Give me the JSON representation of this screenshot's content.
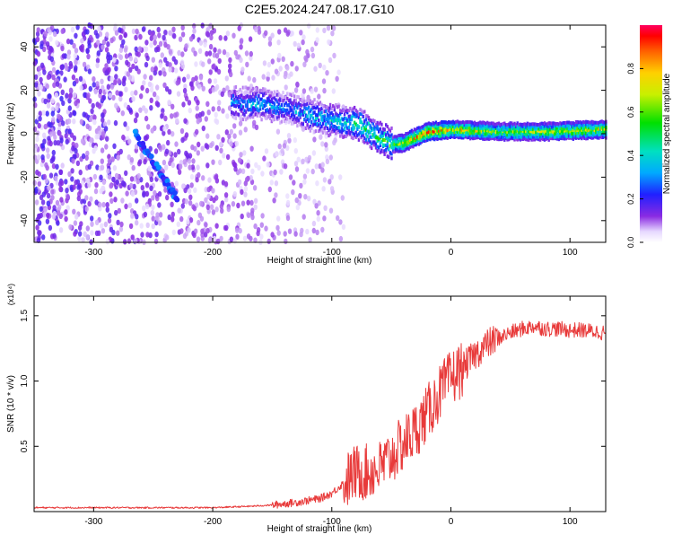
{
  "title": "C2E5.2024.247.08.17.G10",
  "chart_data": [
    {
      "type": "heatmap",
      "name": "spectrogram",
      "xlabel": "Height of straight line (km)",
      "ylabel": "Frequency (Hz)",
      "xlim": [
        -350,
        130
      ],
      "ylim": [
        -50,
        50
      ],
      "x_ticks": [
        -300,
        -200,
        -100,
        0,
        100
      ],
      "y_ticks": [
        -40,
        -20,
        0,
        20,
        40
      ],
      "colorbar": {
        "label": "Normalized spectral amplitude",
        "range": [
          0,
          1
        ],
        "ticks": [
          0.0,
          0.2,
          0.4,
          0.6,
          0.8
        ]
      },
      "ridge": {
        "x": [
          -180,
          -160,
          -140,
          -120,
          -100,
          -80,
          -60,
          -50,
          -40,
          -20,
          0,
          40,
          80,
          130
        ],
        "frequency": [
          14,
          14,
          12,
          9,
          6,
          5,
          -2,
          -5,
          -4,
          1,
          2,
          1,
          1,
          2
        ],
        "amplitude": [
          0.3,
          0.35,
          0.3,
          0.35,
          0.4,
          0.45,
          0.5,
          0.55,
          0.7,
          0.85,
          0.75,
          0.6,
          0.65,
          0.7
        ]
      },
      "diagonal_feature": {
        "x": [
          -265,
          -230
        ],
        "frequency": [
          0,
          -30
        ]
      }
    },
    {
      "type": "line",
      "name": "snr",
      "xlabel": "Height of straight line (km)",
      "ylabel": "SNR (10 * v/v)",
      "y_multiplier": "(x10⁴)",
      "xlim": [
        -350,
        130
      ],
      "ylim": [
        0,
        1.65
      ],
      "x_ticks": [
        -300,
        -200,
        -100,
        0,
        100
      ],
      "y_ticks": [
        0.5,
        1.0,
        1.5
      ],
      "y_tick_labels": [
        "0.5",
        "1.0",
        "1.5"
      ],
      "x": [
        -350,
        -300,
        -250,
        -200,
        -170,
        -150,
        -130,
        -110,
        -100,
        -90,
        -80,
        -70,
        -60,
        -50,
        -40,
        -30,
        -20,
        -10,
        0,
        10,
        20,
        30,
        40,
        50,
        60,
        70,
        80,
        90,
        100,
        110,
        120,
        130
      ],
      "y": [
        0.03,
        0.03,
        0.03,
        0.03,
        0.04,
        0.05,
        0.07,
        0.1,
        0.14,
        0.22,
        0.3,
        0.3,
        0.33,
        0.42,
        0.52,
        0.62,
        0.75,
        0.9,
        1.02,
        1.1,
        1.2,
        1.28,
        1.33,
        1.37,
        1.4,
        1.42,
        1.4,
        1.4,
        1.39,
        1.39,
        1.38,
        1.37
      ],
      "color": "#e83a3a"
    }
  ]
}
